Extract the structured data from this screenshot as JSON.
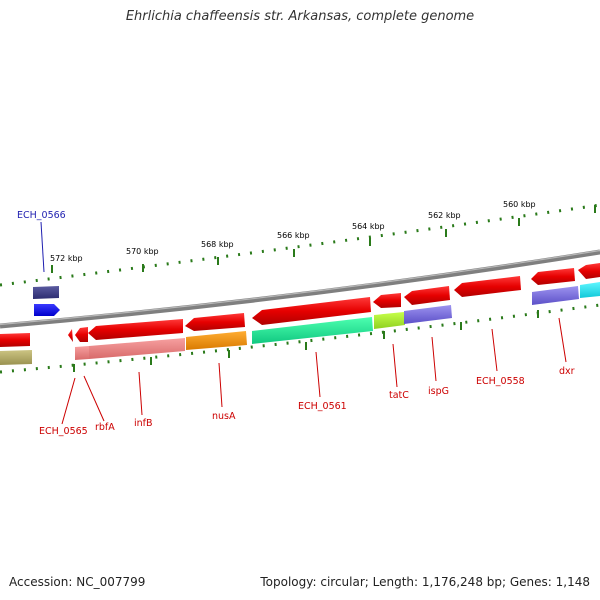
{
  "title": "Ehrlichia chaffeensis str. Arkansas, complete genome",
  "footer": {
    "accession": "Accession: NC_007799",
    "summary": "Topology: circular; Length: 1,176,248 bp; Genes: 1,148"
  },
  "ruler_labels": [
    "572 kbp",
    "570 kbp",
    "568 kbp",
    "566 kbp",
    "564 kbp",
    "562 kbp",
    "560 kbp"
  ],
  "genes": [
    {
      "label": "ECH_0566",
      "color": "#1f1fb0"
    },
    {
      "label": "ECH_0565",
      "color": "#cc0000"
    },
    {
      "label": "rbfA",
      "color": "#cc0000"
    },
    {
      "label": "infB",
      "color": "#cc0000"
    },
    {
      "label": "nusA",
      "color": "#cc0000"
    },
    {
      "label": "ECH_0561",
      "color": "#cc0000"
    },
    {
      "label": "tatC",
      "color": "#cc0000"
    },
    {
      "label": "ispG",
      "color": "#cc0000"
    },
    {
      "label": "ECH_0558",
      "color": "#cc0000"
    },
    {
      "label": "dxr",
      "color": "#cc0000"
    }
  ],
  "colors": {
    "backbone": "#808080",
    "gene_red": "#e00000",
    "tick_green": "#2a7a1a",
    "gene_label_red": "#cc0000",
    "gene_label_blue": "#1f1fb0"
  }
}
